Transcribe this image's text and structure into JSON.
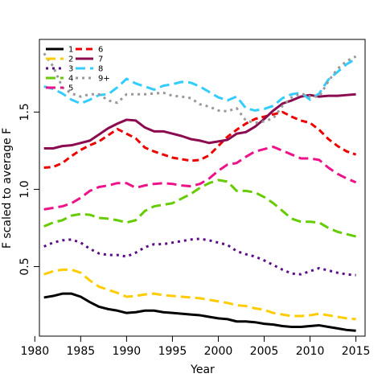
{
  "chart_data": {
    "type": "line",
    "xlabel": "Year",
    "ylabel": "F scaled to average F",
    "xlim": [
      1980.5,
      2016
    ],
    "ylim": [
      0.05,
      1.97
    ],
    "xticks": [
      "1980",
      "1985",
      "1990",
      "1995",
      "2000",
      "2005",
      "2010",
      "2015"
    ],
    "yticks": [
      "0.5",
      "1.0",
      "1.5"
    ],
    "grid": false,
    "legend_position": "top-left",
    "x": [
      1981,
      1982,
      1983,
      1984,
      1985,
      1986,
      1987,
      1988,
      1989,
      1990,
      1991,
      1992,
      1993,
      1994,
      1995,
      1996,
      1997,
      1998,
      1999,
      2000,
      2001,
      2002,
      2003,
      2004,
      2005,
      2006,
      2007,
      2008,
      2009,
      2010,
      2011,
      2012,
      2013,
      2014,
      2015
    ],
    "series": [
      {
        "name": "1",
        "color": "#000000",
        "dash": "solid",
        "values": [
          0.3,
          0.31,
          0.325,
          0.325,
          0.305,
          0.27,
          0.24,
          0.225,
          0.215,
          0.2,
          0.205,
          0.215,
          0.215,
          0.205,
          0.2,
          0.195,
          0.19,
          0.185,
          0.175,
          0.165,
          0.16,
          0.145,
          0.145,
          0.14,
          0.13,
          0.125,
          0.115,
          0.11,
          0.11,
          0.115,
          0.12,
          0.11,
          0.1,
          0.09,
          0.085
        ]
      },
      {
        "name": "2",
        "color": "#FFCC00",
        "dash": "longdash",
        "values": [
          0.45,
          0.47,
          0.48,
          0.48,
          0.46,
          0.41,
          0.37,
          0.35,
          0.33,
          0.305,
          0.31,
          0.32,
          0.325,
          0.315,
          0.31,
          0.305,
          0.3,
          0.295,
          0.285,
          0.275,
          0.265,
          0.25,
          0.245,
          0.23,
          0.22,
          0.2,
          0.19,
          0.18,
          0.18,
          0.185,
          0.195,
          0.185,
          0.175,
          0.165,
          0.16
        ]
      },
      {
        "name": "3",
        "color": "#5B0C86",
        "dash": "dotted",
        "values": [
          0.63,
          0.655,
          0.67,
          0.675,
          0.655,
          0.615,
          0.585,
          0.575,
          0.575,
          0.565,
          0.59,
          0.625,
          0.645,
          0.645,
          0.655,
          0.665,
          0.675,
          0.68,
          0.67,
          0.655,
          0.64,
          0.6,
          0.58,
          0.565,
          0.54,
          0.51,
          0.48,
          0.455,
          0.45,
          0.47,
          0.49,
          0.475,
          0.46,
          0.45,
          0.445
        ]
      },
      {
        "name": "4",
        "color": "#66CC00",
        "dash": "longdash",
        "values": [
          0.76,
          0.785,
          0.8,
          0.83,
          0.84,
          0.835,
          0.815,
          0.81,
          0.8,
          0.785,
          0.8,
          0.86,
          0.89,
          0.9,
          0.91,
          0.94,
          0.97,
          1.01,
          1.04,
          1.06,
          1.05,
          0.99,
          0.99,
          0.98,
          0.95,
          0.91,
          0.86,
          0.81,
          0.79,
          0.79,
          0.785,
          0.75,
          0.725,
          0.71,
          0.695
        ]
      },
      {
        "name": "5",
        "color": "#EE1289",
        "dash": "longdash",
        "values": [
          0.87,
          0.88,
          0.89,
          0.91,
          0.945,
          0.99,
          1.015,
          1.025,
          1.04,
          1.04,
          1.01,
          1.025,
          1.035,
          1.04,
          1.035,
          1.025,
          1.02,
          1.035,
          1.07,
          1.12,
          1.16,
          1.17,
          1.21,
          1.245,
          1.26,
          1.275,
          1.25,
          1.225,
          1.2,
          1.2,
          1.19,
          1.14,
          1.1,
          1.07,
          1.045
        ]
      },
      {
        "name": "6",
        "color": "#EE0000",
        "dash": "dashed",
        "values": [
          1.14,
          1.145,
          1.17,
          1.215,
          1.255,
          1.285,
          1.31,
          1.35,
          1.39,
          1.36,
          1.33,
          1.27,
          1.245,
          1.225,
          1.205,
          1.195,
          1.185,
          1.19,
          1.22,
          1.28,
          1.34,
          1.385,
          1.425,
          1.455,
          1.47,
          1.485,
          1.5,
          1.47,
          1.445,
          1.43,
          1.385,
          1.325,
          1.28,
          1.245,
          1.225
        ]
      },
      {
        "name": "7",
        "color": "#8B0A50",
        "dash": "solid",
        "values": [
          1.265,
          1.265,
          1.28,
          1.285,
          1.3,
          1.315,
          1.355,
          1.395,
          1.425,
          1.45,
          1.445,
          1.4,
          1.375,
          1.375,
          1.36,
          1.345,
          1.325,
          1.315,
          1.3,
          1.31,
          1.32,
          1.36,
          1.37,
          1.405,
          1.455,
          1.51,
          1.555,
          1.575,
          1.6,
          1.61,
          1.6,
          1.605,
          1.605,
          1.61,
          1.615
        ]
      },
      {
        "name": "8",
        "color": "#33CCFF",
        "dash": "longdash",
        "values": [
          1.665,
          1.65,
          1.62,
          1.58,
          1.555,
          1.58,
          1.61,
          1.615,
          1.66,
          1.715,
          1.685,
          1.665,
          1.645,
          1.67,
          1.68,
          1.695,
          1.69,
          1.665,
          1.63,
          1.595,
          1.575,
          1.6,
          1.525,
          1.51,
          1.52,
          1.54,
          1.59,
          1.615,
          1.625,
          1.58,
          1.62,
          1.71,
          1.76,
          1.81,
          1.845
        ]
      },
      {
        "name": "9+",
        "color": "#999999",
        "dash": "dotted",
        "values": [
          1.88,
          1.795,
          1.66,
          1.62,
          1.6,
          1.615,
          1.615,
          1.575,
          1.56,
          1.615,
          1.615,
          1.615,
          1.62,
          1.625,
          1.605,
          1.6,
          1.59,
          1.55,
          1.535,
          1.51,
          1.505,
          1.525,
          1.445,
          1.43,
          1.44,
          1.46,
          1.54,
          1.595,
          1.62,
          1.6,
          1.6,
          1.7,
          1.78,
          1.83,
          1.86
        ]
      }
    ]
  }
}
